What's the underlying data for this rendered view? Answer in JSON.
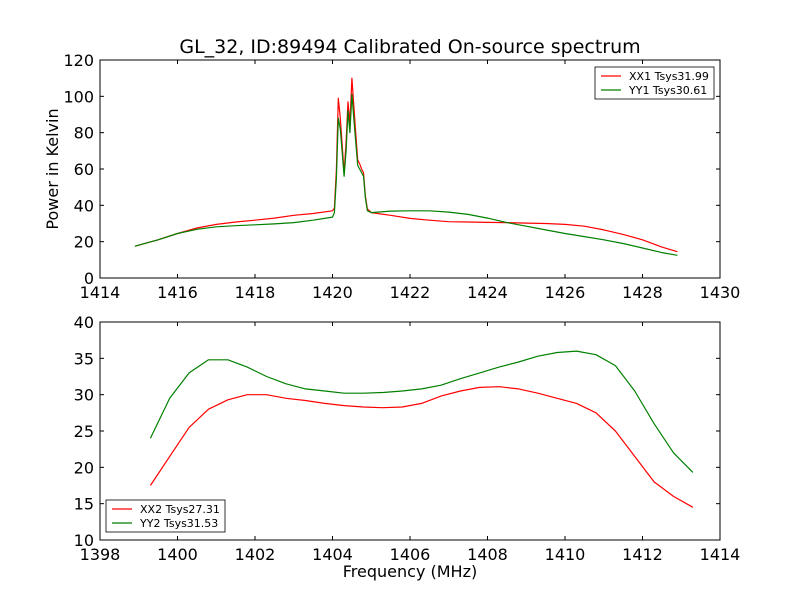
{
  "figure": {
    "title": "GL_32, ID:89494 Calibrated On-source spectrum",
    "xlabel": "Frequency (MHz)"
  },
  "colors": {
    "red": "#ff0000",
    "green": "#008000",
    "frame": "#000000"
  },
  "chart_data": [
    {
      "type": "line",
      "title": "GL_32, ID:89494 Calibrated On-source spectrum",
      "ylabel": "Power in Kelvin",
      "xlim": [
        1414,
        1430
      ],
      "ylim": [
        0,
        120
      ],
      "xticks": [
        1414,
        1416,
        1418,
        1420,
        1422,
        1424,
        1426,
        1428,
        1430
      ],
      "yticks": [
        0,
        20,
        40,
        60,
        80,
        100,
        120
      ],
      "grid": false,
      "legend_position": "top-right",
      "series": [
        {
          "name": "XX1 Tsys31.99",
          "color": "#ff0000",
          "x": [
            1414.9,
            1415.5,
            1416.0,
            1416.5,
            1417.0,
            1417.5,
            1418.0,
            1418.5,
            1419.0,
            1419.5,
            1420.0,
            1420.05,
            1420.1,
            1420.15,
            1420.2,
            1420.3,
            1420.35,
            1420.4,
            1420.45,
            1420.5,
            1420.55,
            1420.6,
            1420.65,
            1420.7,
            1420.75,
            1420.8,
            1420.85,
            1420.9,
            1421.0,
            1421.5,
            1422.0,
            1422.5,
            1423.0,
            1423.5,
            1424.0,
            1424.5,
            1425.0,
            1425.5,
            1426.0,
            1426.5,
            1427.0,
            1427.5,
            1428.0,
            1428.5,
            1428.9
          ],
          "y": [
            17.5,
            21.0,
            24.5,
            27.5,
            29.5,
            30.8,
            31.8,
            33.0,
            34.5,
            35.5,
            37.0,
            38.5,
            60.0,
            99.0,
            88.0,
            58.0,
            75.0,
            97.0,
            85.0,
            110.0,
            95.0,
            80.0,
            65.0,
            63.0,
            60.0,
            58.0,
            45.0,
            38.0,
            36.0,
            34.5,
            32.8,
            31.8,
            31.0,
            30.8,
            30.6,
            30.5,
            30.2,
            30.0,
            29.5,
            28.5,
            26.5,
            24.0,
            21.0,
            17.0,
            14.5
          ]
        },
        {
          "name": "YY1 Tsys30.61",
          "color": "#008000",
          "x": [
            1414.9,
            1415.5,
            1416.0,
            1416.5,
            1417.0,
            1417.5,
            1418.0,
            1418.5,
            1419.0,
            1419.5,
            1420.0,
            1420.05,
            1420.1,
            1420.15,
            1420.2,
            1420.3,
            1420.35,
            1420.4,
            1420.45,
            1420.5,
            1420.55,
            1420.6,
            1420.65,
            1420.7,
            1420.75,
            1420.8,
            1420.85,
            1420.9,
            1421.0,
            1421.5,
            1422.0,
            1422.5,
            1423.0,
            1423.5,
            1424.0,
            1424.5,
            1425.0,
            1425.5,
            1426.0,
            1426.5,
            1427.0,
            1427.5,
            1428.0,
            1428.5,
            1428.9
          ],
          "y": [
            17.5,
            21.0,
            24.5,
            26.8,
            28.2,
            28.8,
            29.3,
            29.8,
            30.5,
            31.8,
            33.5,
            36.0,
            55.0,
            88.0,
            82.0,
            56.0,
            70.0,
            92.0,
            80.0,
            101.0,
            88.0,
            75.0,
            62.0,
            60.0,
            58.0,
            56.0,
            44.0,
            37.0,
            36.0,
            36.8,
            37.0,
            37.0,
            36.3,
            35.0,
            33.0,
            30.5,
            28.5,
            26.5,
            24.5,
            22.8,
            21.0,
            19.0,
            16.5,
            14.0,
            12.5
          ]
        }
      ]
    },
    {
      "type": "line",
      "xlabel": "Frequency (MHz)",
      "xlim": [
        1398,
        1414
      ],
      "ylim": [
        10,
        40
      ],
      "xticks": [
        1398,
        1400,
        1402,
        1404,
        1406,
        1408,
        1410,
        1412,
        1414
      ],
      "yticks": [
        10,
        15,
        20,
        25,
        30,
        35,
        40
      ],
      "grid": false,
      "legend_position": "bottom-left",
      "series": [
        {
          "name": "XX2 Tsys27.31",
          "color": "#ff0000",
          "x": [
            1399.3,
            1399.8,
            1400.3,
            1400.8,
            1401.3,
            1401.8,
            1402.3,
            1402.8,
            1403.3,
            1403.8,
            1404.3,
            1404.8,
            1405.3,
            1405.8,
            1406.3,
            1406.8,
            1407.3,
            1407.8,
            1408.3,
            1408.8,
            1409.3,
            1409.8,
            1410.3,
            1410.8,
            1411.3,
            1411.8,
            1412.3,
            1412.8,
            1413.3
          ],
          "y": [
            17.5,
            21.5,
            25.5,
            28.0,
            29.3,
            30.0,
            30.0,
            29.5,
            29.2,
            28.8,
            28.5,
            28.3,
            28.2,
            28.3,
            28.8,
            29.8,
            30.5,
            31.0,
            31.1,
            30.8,
            30.2,
            29.5,
            28.8,
            27.5,
            25.0,
            21.5,
            18.0,
            16.0,
            14.5
          ]
        },
        {
          "name": "YY2 Tsys31.53",
          "color": "#008000",
          "x": [
            1399.3,
            1399.8,
            1400.3,
            1400.8,
            1401.3,
            1401.8,
            1402.3,
            1402.8,
            1403.3,
            1403.8,
            1404.3,
            1404.8,
            1405.3,
            1405.8,
            1406.3,
            1406.8,
            1407.3,
            1407.8,
            1408.3,
            1408.8,
            1409.3,
            1409.8,
            1410.3,
            1410.8,
            1411.3,
            1411.8,
            1412.3,
            1412.8,
            1413.3
          ],
          "y": [
            24.0,
            29.5,
            33.0,
            34.8,
            34.8,
            33.8,
            32.5,
            31.5,
            30.8,
            30.5,
            30.2,
            30.2,
            30.3,
            30.5,
            30.8,
            31.3,
            32.2,
            33.0,
            33.8,
            34.5,
            35.3,
            35.8,
            36.0,
            35.5,
            34.0,
            30.5,
            26.0,
            22.0,
            19.3
          ]
        }
      ]
    }
  ]
}
